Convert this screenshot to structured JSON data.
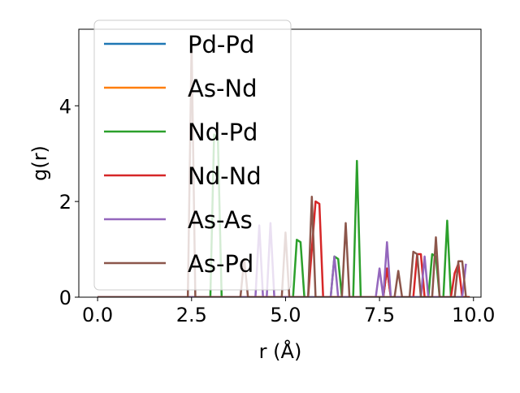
{
  "chart_data": {
    "type": "line",
    "title": "",
    "xlabel": "r (Å)",
    "ylabel": "g(r)",
    "xlim": [
      -0.5,
      10.2
    ],
    "ylim": [
      0,
      5.6
    ],
    "x_ticks": [
      0.0,
      2.5,
      5.0,
      7.5,
      10.0
    ],
    "x_tick_labels": [
      "0.0",
      "2.5",
      "5.0",
      "7.5",
      "10.0"
    ],
    "y_ticks": [
      0,
      2,
      4
    ],
    "y_tick_labels": [
      "0",
      "2",
      "4"
    ],
    "grid": false,
    "legend_position": "top-left",
    "series": [
      {
        "name": "Pd-Pd",
        "color": "#1f77b4",
        "points": [
          [
            0,
            0
          ],
          [
            9.9,
            0
          ]
        ]
      },
      {
        "name": "As-Nd",
        "color": "#ff7f0e",
        "points": [
          [
            0,
            0
          ],
          [
            9.9,
            0
          ]
        ]
      },
      {
        "name": "Nd-Pd",
        "color": "#2ca02c",
        "points": [
          [
            0,
            0
          ],
          [
            3.0,
            0
          ],
          [
            3.1,
            3.4
          ],
          [
            3.2,
            3.3
          ],
          [
            3.3,
            0
          ],
          [
            5.2,
            0
          ],
          [
            5.3,
            1.2
          ],
          [
            5.4,
            1.15
          ],
          [
            5.5,
            0
          ],
          [
            6.2,
            0
          ],
          [
            6.3,
            0.85
          ],
          [
            6.4,
            0.8
          ],
          [
            6.5,
            0
          ],
          [
            6.8,
            0
          ],
          [
            6.9,
            2.85
          ],
          [
            7.0,
            0
          ],
          [
            7.6,
            0
          ],
          [
            7.7,
            0.6
          ],
          [
            7.8,
            0
          ],
          [
            8.8,
            0
          ],
          [
            8.9,
            0.9
          ],
          [
            9.0,
            0.85
          ],
          [
            9.1,
            0
          ],
          [
            9.2,
            0
          ],
          [
            9.3,
            1.6
          ],
          [
            9.4,
            0
          ],
          [
            9.9,
            0
          ]
        ]
      },
      {
        "name": "Nd-Nd",
        "color": "#d62728",
        "points": [
          [
            0,
            0
          ],
          [
            5.6,
            0
          ],
          [
            5.7,
            1.0
          ],
          [
            5.8,
            2.0
          ],
          [
            5.9,
            1.95
          ],
          [
            6.0,
            0
          ],
          [
            7.6,
            0
          ],
          [
            7.7,
            0.6
          ],
          [
            7.8,
            0
          ],
          [
            8.4,
            0
          ],
          [
            8.5,
            0.9
          ],
          [
            8.6,
            0.9
          ],
          [
            8.7,
            0
          ],
          [
            9.4,
            0
          ],
          [
            9.5,
            0.5
          ],
          [
            9.6,
            0.7
          ],
          [
            9.7,
            0
          ],
          [
            9.9,
            0
          ]
        ]
      },
      {
        "name": "As-As",
        "color": "#9467bd",
        "points": [
          [
            0,
            0
          ],
          [
            4.2,
            0
          ],
          [
            4.3,
            1.5
          ],
          [
            4.4,
            0
          ],
          [
            4.5,
            0
          ],
          [
            4.6,
            1.55
          ],
          [
            4.7,
            0
          ],
          [
            6.2,
            0
          ],
          [
            6.3,
            0.85
          ],
          [
            6.4,
            0
          ],
          [
            7.4,
            0
          ],
          [
            7.5,
            0.6
          ],
          [
            7.6,
            0
          ],
          [
            7.7,
            1.15
          ],
          [
            7.8,
            0
          ],
          [
            8.6,
            0
          ],
          [
            8.7,
            0.85
          ],
          [
            8.8,
            0
          ],
          [
            9.7,
            0
          ],
          [
            9.8,
            0.7
          ]
        ]
      },
      {
        "name": "As-Pd",
        "color": "#8c564b",
        "points": [
          [
            0,
            0
          ],
          [
            2.4,
            0
          ],
          [
            2.5,
            5.3
          ],
          [
            2.6,
            0
          ],
          [
            3.8,
            0
          ],
          [
            3.9,
            0.8
          ],
          [
            4.0,
            0
          ],
          [
            4.9,
            0
          ],
          [
            5.0,
            1.35
          ],
          [
            5.1,
            0
          ],
          [
            5.6,
            0
          ],
          [
            5.7,
            2.1
          ],
          [
            5.8,
            0
          ],
          [
            6.5,
            0
          ],
          [
            6.6,
            1.55
          ],
          [
            6.7,
            0
          ],
          [
            7.9,
            0
          ],
          [
            8.0,
            0.55
          ],
          [
            8.1,
            0
          ],
          [
            8.3,
            0
          ],
          [
            8.4,
            0.95
          ],
          [
            8.5,
            0.9
          ],
          [
            8.6,
            0
          ],
          [
            8.9,
            0
          ],
          [
            9.0,
            1.25
          ],
          [
            9.1,
            0
          ],
          [
            9.5,
            0
          ],
          [
            9.6,
            0.75
          ],
          [
            9.7,
            0.75
          ],
          [
            9.8,
            0
          ]
        ]
      }
    ]
  }
}
